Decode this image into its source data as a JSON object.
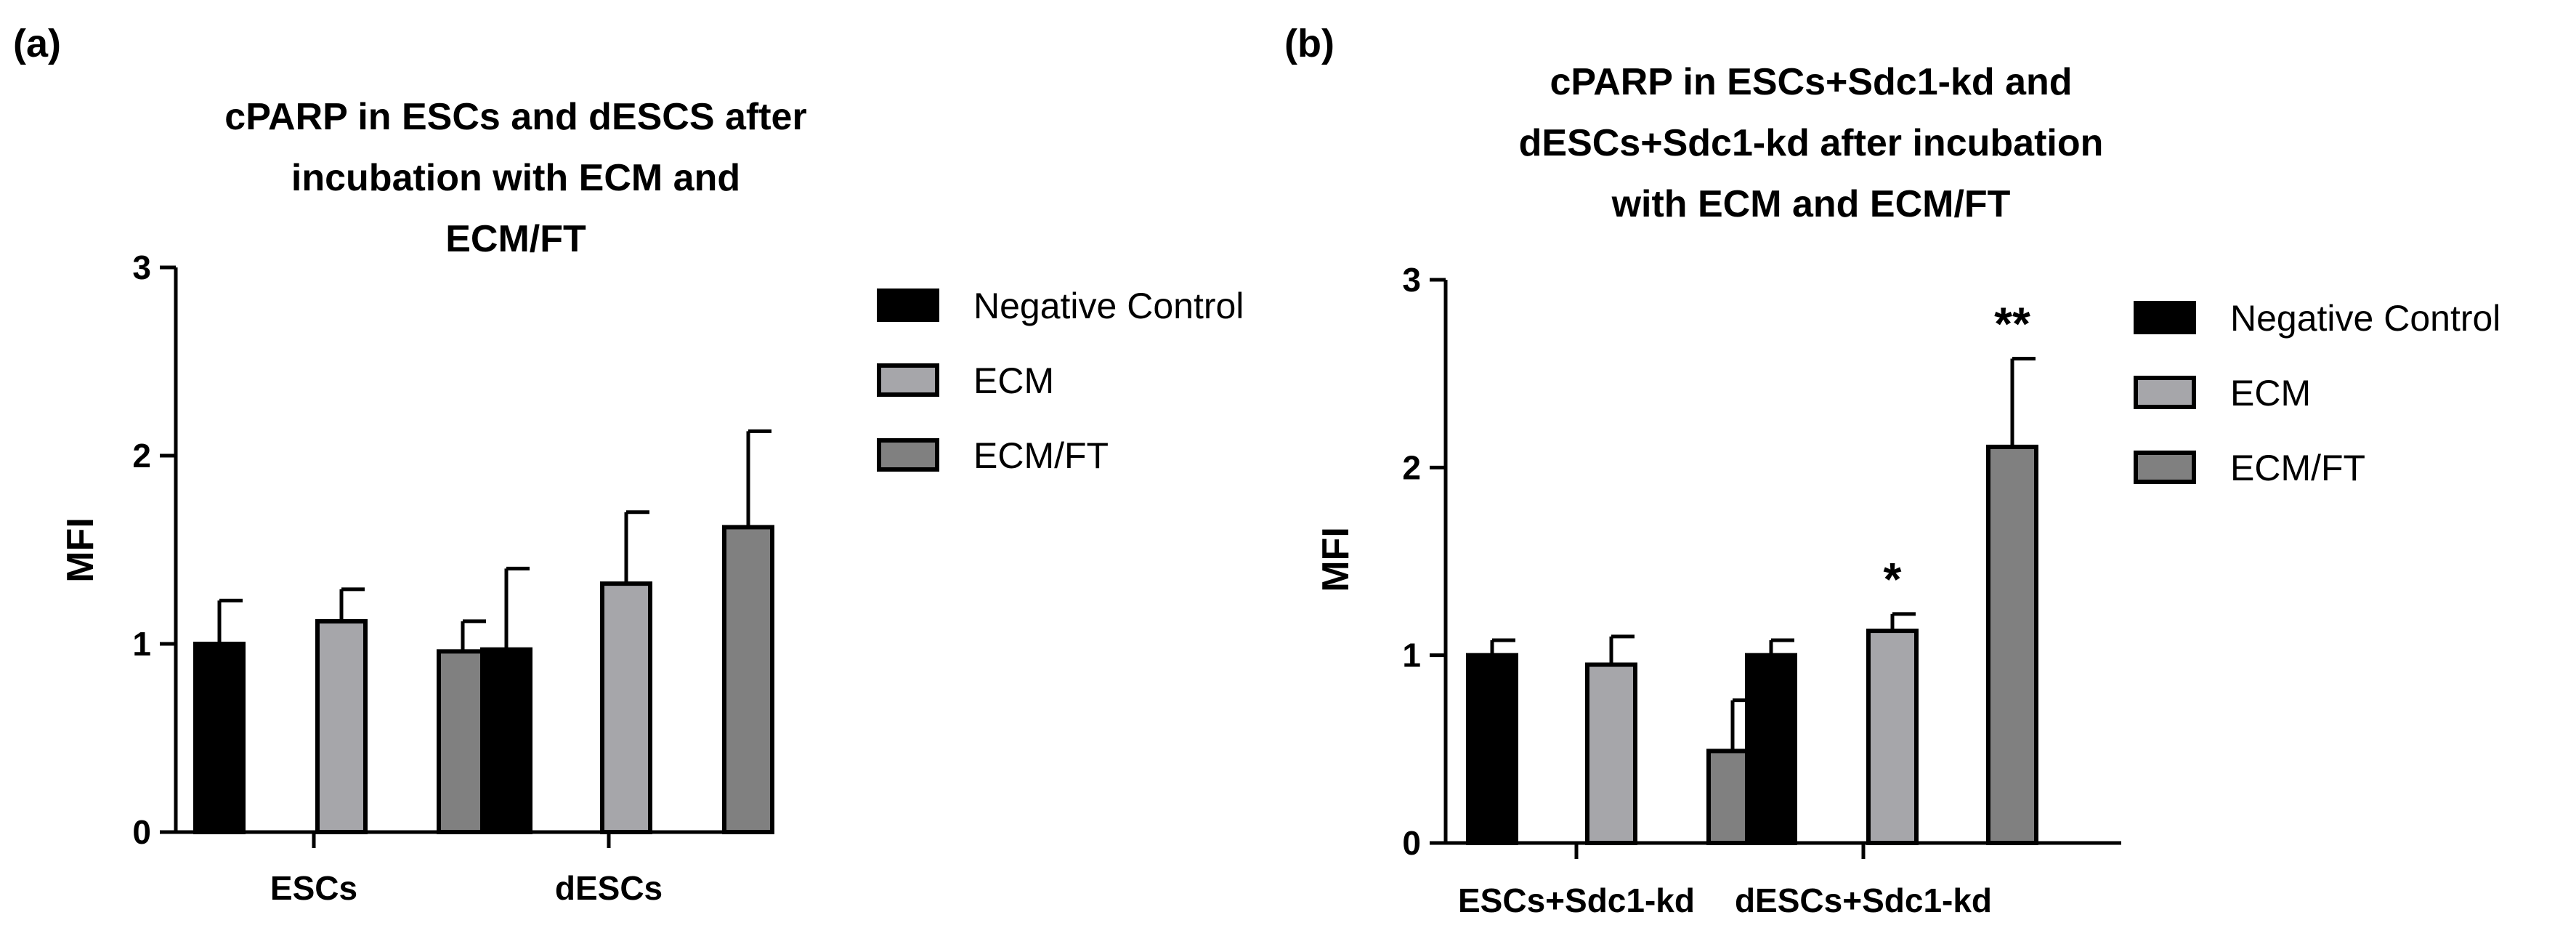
{
  "chart_data": [
    {
      "panel_label": "(a)",
      "type": "bar",
      "title_lines": [
        "cPARP in ESCs and dESCS after",
        "incubation with ECM and",
        "ECM/FT"
      ],
      "xlabel": "",
      "ylabel": "MFI",
      "ylim": [
        0,
        3
      ],
      "yticks": [
        0,
        1,
        2,
        3
      ],
      "grid": false,
      "legend_position": "right",
      "categories": [
        "ESCs",
        "dESCs"
      ],
      "series": [
        {
          "name": "Negative Control",
          "color": "#000000",
          "values": [
            1.0,
            0.97
          ],
          "errors": [
            0.23,
            0.43
          ],
          "significance": [
            "",
            ""
          ]
        },
        {
          "name": "ECM",
          "color": "#a6a6aa",
          "values": [
            1.12,
            1.32
          ],
          "errors": [
            0.17,
            0.38
          ],
          "significance": [
            "",
            ""
          ]
        },
        {
          "name": "ECM/FT",
          "color": "#808080",
          "values": [
            0.96,
            1.62
          ],
          "errors": [
            0.16,
            0.51
          ],
          "significance": [
            "",
            ""
          ]
        }
      ]
    },
    {
      "panel_label": "(b)",
      "type": "bar",
      "title_lines": [
        "cPARP in ESCs+Sdc1-kd and",
        "dESCs+Sdc1-kd after incubation",
        "with ECM and ECM/FT"
      ],
      "xlabel": "",
      "ylabel": "MFI",
      "ylim": [
        0,
        3
      ],
      "yticks": [
        0,
        1,
        2,
        3
      ],
      "grid": false,
      "legend_position": "right",
      "categories": [
        "ESCs+Sdc1-kd",
        "dESCs+Sdc1-kd"
      ],
      "series": [
        {
          "name": "Negative Control",
          "color": "#000000",
          "values": [
            1.0,
            1.0
          ],
          "errors": [
            0.08,
            0.08
          ],
          "significance": [
            "",
            ""
          ]
        },
        {
          "name": "ECM",
          "color": "#a6a6aa",
          "values": [
            0.95,
            1.13
          ],
          "errors": [
            0.15,
            0.09
          ],
          "significance": [
            "",
            "*"
          ]
        },
        {
          "name": "ECM/FT",
          "color": "#808080",
          "values": [
            0.49,
            2.11
          ],
          "errors": [
            0.27,
            0.47
          ],
          "significance": [
            "",
            "**"
          ]
        }
      ]
    }
  ]
}
